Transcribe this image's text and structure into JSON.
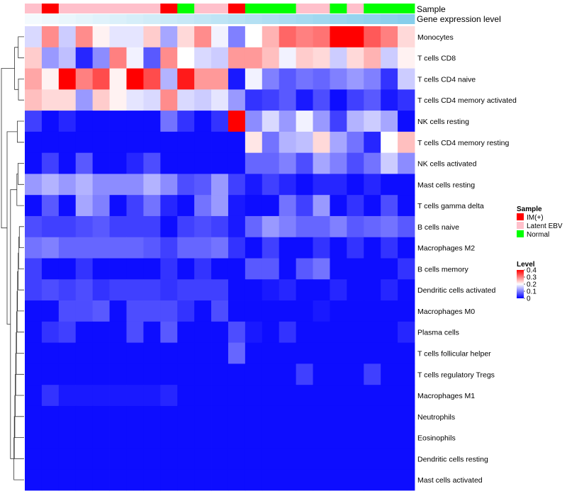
{
  "chart_data": {
    "type": "heatmap",
    "title": "",
    "annotation_labels": [
      "Sample",
      "Gene expression level"
    ],
    "legend": {
      "sample_title": "Sample",
      "sample_groups": [
        {
          "name": "IM(+)",
          "color": "#ff0000"
        },
        {
          "name": "Latent EBV",
          "color": "#ffc0cb"
        },
        {
          "name": "Normal",
          "color": "#00ff00"
        }
      ],
      "level_title": "Level",
      "level_ticks": [
        "0.4",
        "0.3",
        "0.2",
        "0.1",
        "0"
      ],
      "level_tick_values": [
        0.4,
        0.3,
        0.2,
        0.1,
        0
      ],
      "color_stops": [
        {
          "value": 0,
          "color": "#0000ff"
        },
        {
          "value": 0.2,
          "color": "#ffffff"
        },
        {
          "value": 0.4,
          "color": "#ff0000"
        }
      ]
    },
    "sample_groups_per_column": [
      "Latent EBV",
      "IM(+)",
      "Latent EBV",
      "Latent EBV",
      "Latent EBV",
      "Latent EBV",
      "Latent EBV",
      "Latent EBV",
      "IM(+)",
      "Normal",
      "Latent EBV",
      "Latent EBV",
      "IM(+)",
      "Normal",
      "Normal",
      "Normal",
      "Latent EBV",
      "Latent EBV",
      "Normal",
      "Latent EBV",
      "Normal",
      "Normal",
      "Normal"
    ],
    "expression_level_per_column": [
      0.02,
      0.03,
      0.04,
      0.05,
      0.06,
      0.07,
      0.08,
      0.09,
      0.1,
      0.11,
      0.12,
      0.13,
      0.14,
      0.15,
      0.16,
      0.17,
      0.18,
      0.19,
      0.2,
      0.21,
      0.22,
      0.23,
      0.24
    ],
    "rows": [
      "Monocytes",
      "T cells CD8",
      "T cells CD4 naive",
      "T cells CD4 memory activated",
      "NK cells resting",
      "T cells CD4 memory resting",
      "NK cells activated",
      "Mast cells resting",
      "T cells gamma delta",
      "B cells naive",
      "Macrophages M2",
      "B cells memory",
      "Dendritic cells activated",
      "Macrophages M0",
      "Plasma cells",
      "T cells follicular helper",
      "T cells regulatory  Tregs",
      "Macrophages M1",
      "Neutrophils",
      "Eosinophils",
      "Dendritic cells resting",
      "Mast cells activated"
    ],
    "values": [
      [
        0.17,
        0.29,
        0.16,
        0.29,
        0.21,
        0.18,
        0.18,
        0.24,
        0.13,
        0.23,
        0.29,
        0.19,
        0.1,
        0.2,
        0.26,
        0.32,
        0.3,
        0.31,
        0.4,
        0.4,
        0.33,
        0.3,
        0.23
      ],
      [
        0.24,
        0.12,
        0.15,
        0.03,
        0.11,
        0.3,
        0.19,
        0.07,
        0.29,
        0.2,
        0.17,
        0.16,
        0.28,
        0.28,
        0.25,
        0.19,
        0.24,
        0.23,
        0.16,
        0.23,
        0.26,
        0.16,
        0.21
      ],
      [
        0.27,
        0.21,
        0.4,
        0.3,
        0.34,
        0.21,
        0.4,
        0.34,
        0.14,
        0.38,
        0.28,
        0.28,
        0.02,
        0.19,
        0.1,
        0.07,
        0.09,
        0.08,
        0.1,
        0.12,
        0.1,
        0.04,
        0.16
      ],
      [
        0.25,
        0.23,
        0.23,
        0.12,
        0.24,
        0.21,
        0.18,
        0.17,
        0.29,
        0.17,
        0.16,
        0.18,
        0.12,
        0.04,
        0.05,
        0.07,
        0.02,
        0.06,
        0.01,
        0.05,
        0.07,
        0.02,
        0.04
      ],
      [
        0.05,
        0.01,
        0.03,
        0.01,
        0.01,
        0.01,
        0.01,
        0.01,
        0.09,
        0.04,
        0.01,
        0.04,
        0.4,
        0.11,
        0.17,
        0.12,
        0.19,
        0.12,
        0.05,
        0.14,
        0.16,
        0.13,
        0.01
      ],
      [
        0.01,
        0.01,
        0.01,
        0.01,
        0.01,
        0.01,
        0.01,
        0.01,
        0.01,
        0.01,
        0.01,
        0.01,
        0.01,
        0.22,
        0.09,
        0.14,
        0.15,
        0.23,
        0.13,
        0.09,
        0.03,
        0.2,
        0.25
      ],
      [
        0.01,
        0.05,
        0.01,
        0.07,
        0.01,
        0.01,
        0.03,
        0.06,
        0.01,
        0.01,
        0.01,
        0.01,
        0.01,
        0.08,
        0.08,
        0.1,
        0.06,
        0.13,
        0.1,
        0.06,
        0.09,
        0.16,
        0.11
      ],
      [
        0.12,
        0.14,
        0.12,
        0.14,
        0.11,
        0.11,
        0.11,
        0.14,
        0.11,
        0.06,
        0.07,
        0.12,
        0.05,
        0.02,
        0.05,
        0.03,
        0.01,
        0.03,
        0.03,
        0.01,
        0.03,
        0.01,
        0.01
      ],
      [
        0.01,
        0.07,
        0.01,
        0.13,
        0.1,
        0.01,
        0.05,
        0.09,
        0.03,
        0.01,
        0.09,
        0.12,
        0.02,
        0.01,
        0.01,
        0.09,
        0.05,
        0.12,
        0.01,
        0.04,
        0.01,
        0.06,
        0.01
      ],
      [
        0.06,
        0.05,
        0.05,
        0.06,
        0.07,
        0.05,
        0.05,
        0.05,
        0.01,
        0.05,
        0.06,
        0.05,
        0.02,
        0.08,
        0.12,
        0.1,
        0.08,
        0.08,
        0.1,
        0.07,
        0.08,
        0.09,
        0.07
      ],
      [
        0.09,
        0.1,
        0.08,
        0.08,
        0.08,
        0.08,
        0.08,
        0.07,
        0.05,
        0.08,
        0.08,
        0.09,
        0.04,
        0.01,
        0.05,
        0.01,
        0.01,
        0.04,
        0.01,
        0.04,
        0.01,
        0.04,
        0.01
      ],
      [
        0.05,
        0.01,
        0.01,
        0.04,
        0.01,
        0.01,
        0.01,
        0.01,
        0.04,
        0.01,
        0.04,
        0.01,
        0.01,
        0.07,
        0.07,
        0.01,
        0.07,
        0.09,
        0.01,
        0.01,
        0.01,
        0.01,
        0.04
      ],
      [
        0.05,
        0.06,
        0.05,
        0.06,
        0.04,
        0.05,
        0.05,
        0.05,
        0.04,
        0.05,
        0.05,
        0.05,
        0.01,
        0.01,
        0.02,
        0.03,
        0.01,
        0.01,
        0.03,
        0.01,
        0.01,
        0.03,
        0.01
      ],
      [
        0.01,
        0.01,
        0.06,
        0.06,
        0.07,
        0.01,
        0.06,
        0.06,
        0.06,
        0.04,
        0.01,
        0.06,
        0.01,
        0.01,
        0.01,
        0.01,
        0.01,
        0.02,
        0.01,
        0.01,
        0.01,
        0.01,
        0.01
      ],
      [
        0.01,
        0.04,
        0.05,
        0.01,
        0.01,
        0.01,
        0.06,
        0.01,
        0.07,
        0.01,
        0.01,
        0.01,
        0.06,
        0.02,
        0.01,
        0.04,
        0.01,
        0.01,
        0.01,
        0.01,
        0.01,
        0.01,
        0.03
      ],
      [
        0.01,
        0.01,
        0.01,
        0.01,
        0.01,
        0.01,
        0.01,
        0.01,
        0.01,
        0.01,
        0.01,
        0.01,
        0.08,
        0.01,
        0.01,
        0.01,
        0.01,
        0.01,
        0.01,
        0.01,
        0.01,
        0.01,
        0.01
      ],
      [
        0.01,
        0.01,
        0.01,
        0.01,
        0.01,
        0.01,
        0.01,
        0.01,
        0.01,
        0.01,
        0.01,
        0.01,
        0.01,
        0.01,
        0.01,
        0.01,
        0.05,
        0.01,
        0.01,
        0.01,
        0.05,
        0.01,
        0.01
      ],
      [
        0.01,
        0.04,
        0.02,
        0.02,
        0.02,
        0.02,
        0.02,
        0.02,
        0.03,
        0.01,
        0.01,
        0.01,
        0.01,
        0.01,
        0.01,
        0.01,
        0.01,
        0.01,
        0.01,
        0.01,
        0.01,
        0.01,
        0.01
      ],
      [
        0.01,
        0.01,
        0.01,
        0.01,
        0.01,
        0.01,
        0.01,
        0.01,
        0.01,
        0.01,
        0.01,
        0.01,
        0.01,
        0.01,
        0.01,
        0.01,
        0.01,
        0.01,
        0.01,
        0.01,
        0.01,
        0.01,
        0.01
      ],
      [
        0.01,
        0.01,
        0.01,
        0.01,
        0.01,
        0.01,
        0.01,
        0.01,
        0.01,
        0.01,
        0.01,
        0.01,
        0.01,
        0.01,
        0.01,
        0.01,
        0.01,
        0.01,
        0.01,
        0.01,
        0.01,
        0.01,
        0.01
      ],
      [
        0.01,
        0.01,
        0.01,
        0.01,
        0.01,
        0.01,
        0.01,
        0.01,
        0.01,
        0.01,
        0.01,
        0.01,
        0.01,
        0.01,
        0.01,
        0.01,
        0.01,
        0.01,
        0.01,
        0.01,
        0.01,
        0.01,
        0.01
      ],
      [
        0.01,
        0.01,
        0.01,
        0.01,
        0.01,
        0.01,
        0.01,
        0.01,
        0.01,
        0.01,
        0.01,
        0.01,
        0.01,
        0.01,
        0.01,
        0.01,
        0.01,
        0.01,
        0.01,
        0.01,
        0.01,
        0.01,
        0.01
      ]
    ],
    "row_dendrogram": {
      "merges": [
        [
          -1,
          -2,
          0.26
        ],
        [
          -3,
          -4,
          0.25
        ],
        [
          1,
          2,
          0.42
        ],
        [
          -5,
          -6,
          0.3
        ],
        [
          -7,
          -8,
          0.27
        ],
        [
          5,
          -9,
          0.32
        ],
        [
          -10,
          -11,
          0.21
        ],
        [
          7,
          -12,
          0.24
        ],
        [
          8,
          -13,
          0.26
        ],
        [
          9,
          -14,
          0.29
        ],
        [
          10,
          -15,
          0.31
        ],
        [
          11,
          -16,
          0.33
        ],
        [
          12,
          -17,
          0.35
        ],
        [
          13,
          -18,
          0.37
        ],
        [
          14,
          -19,
          0.39
        ],
        [
          15,
          -20,
          0.41
        ],
        [
          16,
          -21,
          0.43
        ],
        [
          17,
          -22,
          0.45
        ],
        [
          6,
          18,
          0.6
        ],
        [
          4,
          19,
          0.75
        ],
        [
          3,
          20,
          1.0
        ]
      ]
    }
  }
}
